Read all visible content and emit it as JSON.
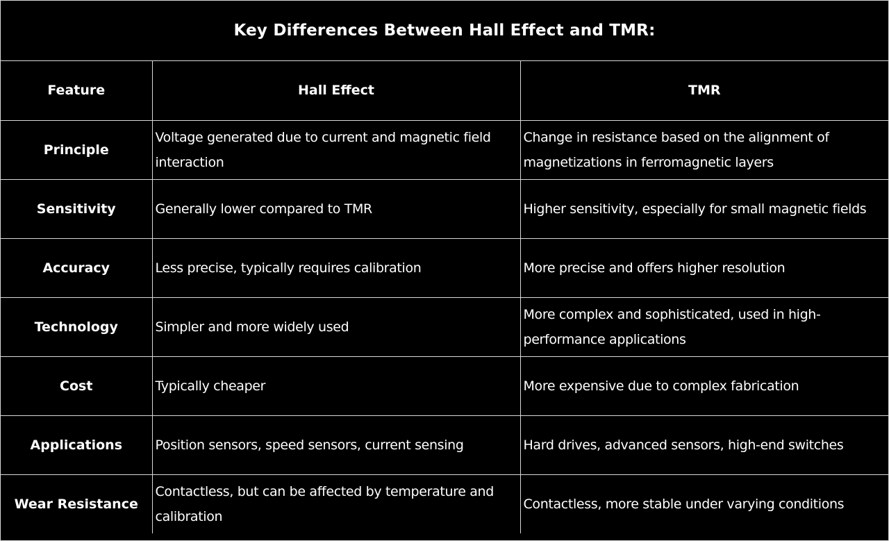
{
  "title": "Key Differences Between Hall Effect and TMR:",
  "table": {
    "headers": [
      "Feature",
      "Hall Effect",
      "TMR"
    ],
    "rows": [
      {
        "feature": "Principle",
        "hall": "Voltage generated due to current and magnetic field interaction",
        "tmr": "Change in resistance based on the alignment of magnetizations in ferromagnetic layers"
      },
      {
        "feature": "Sensitivity",
        "hall": "Generally lower compared to TMR",
        "tmr": "Higher sensitivity, especially for small magnetic fields"
      },
      {
        "feature": "Accuracy",
        "hall": "Less precise, typically requires calibration",
        "tmr": "More precise and offers higher resolution"
      },
      {
        "feature": "Technology",
        "hall": "Simpler and more widely used",
        "tmr": "More complex and sophisticated, used in high-performance applications"
      },
      {
        "feature": "Cost",
        "hall": "Typically cheaper",
        "tmr": "More expensive due to complex fabrication"
      },
      {
        "feature": "Applications",
        "hall": "Position sensors, speed sensors, current sensing",
        "tmr": "Hard drives, advanced sensors, high-end switches"
      },
      {
        "feature": "Wear Resistance",
        "hall": "Contactless, but can be affected by temperature and calibration",
        "tmr": "Contactless, more stable under varying conditions"
      }
    ]
  }
}
